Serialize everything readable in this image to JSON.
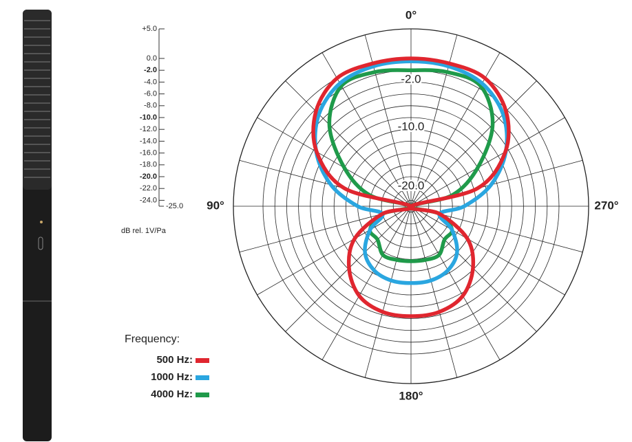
{
  "chart_data": {
    "type": "polar",
    "axis_title": "dB rel. 1V/Pa",
    "legend_title": "Frequency:",
    "rlim": [
      -25,
      5
    ],
    "rticks": [
      {
        "value": 5,
        "label": "+5.0"
      },
      {
        "value": 0,
        "label": "0.0"
      },
      {
        "value": -2,
        "label": "-2.0",
        "bold": true
      },
      {
        "value": -4,
        "label": "-4.0"
      },
      {
        "value": -6,
        "label": "-6.0"
      },
      {
        "value": -8,
        "label": "-8.0"
      },
      {
        "value": -10,
        "label": "-10.0",
        "bold": true
      },
      {
        "value": -12,
        "label": "-12.0"
      },
      {
        "value": -14,
        "label": "-14.0"
      },
      {
        "value": -16,
        "label": "-16.0"
      },
      {
        "value": -18,
        "label": "-18.0"
      },
      {
        "value": -20,
        "label": "-20.0",
        "bold": true
      },
      {
        "value": -22,
        "label": "-22.0"
      },
      {
        "value": -24,
        "label": "-24.0"
      },
      {
        "value": -25,
        "label": "-25.0"
      }
    ],
    "ring_labels": [
      {
        "value": -2,
        "label": "-2.0"
      },
      {
        "value": -10,
        "label": "-10.0"
      },
      {
        "value": -20,
        "label": "-20.0"
      }
    ],
    "angle_labels": [
      {
        "value": 0,
        "label": "0°"
      },
      {
        "value": 90,
        "label": "90°"
      },
      {
        "value": 180,
        "label": "180°"
      },
      {
        "value": 270,
        "label": "270°"
      }
    ],
    "angles": [
      0,
      15,
      30,
      45,
      60,
      75,
      90,
      105,
      120,
      135,
      150,
      165,
      180,
      195,
      210,
      225,
      240,
      255,
      270,
      285,
      300,
      315,
      330,
      345
    ],
    "series": [
      {
        "name": "500 Hz:",
        "color": "#e0262f",
        "values": [
          0,
          0,
          0,
          -2.3,
          -6.6,
          -13.4,
          -25,
          -20,
          -14,
          -10.2,
          -7.5,
          -6.5,
          -6.4,
          -6.5,
          -7.5,
          -10.2,
          -14,
          -20,
          -25,
          -13.4,
          -6.6,
          -2.3,
          0,
          0
        ]
      },
      {
        "name": "1000 Hz:",
        "color": "#2aa6e0",
        "values": [
          -0.5,
          -0.5,
          -1,
          -3,
          -6.5,
          -11,
          -16,
          -20,
          -17,
          -14,
          -12.5,
          -12,
          -12,
          -12,
          -12.5,
          -14,
          -17,
          -20,
          -16,
          -11,
          -6.5,
          -3,
          -1,
          -0.5
        ]
      },
      {
        "name": "4000 Hz:",
        "color": "#1f9a4a",
        "values": [
          -2,
          -1.5,
          -1.5,
          -5.5,
          -12,
          -17.8,
          -25,
          -20,
          -17,
          -17,
          -15.5,
          -15.6,
          -15.7,
          -15.6,
          -15.5,
          -17,
          -17,
          -20,
          -25,
          -17.8,
          -12,
          -5.5,
          -1.5,
          -1.5
        ]
      }
    ]
  }
}
